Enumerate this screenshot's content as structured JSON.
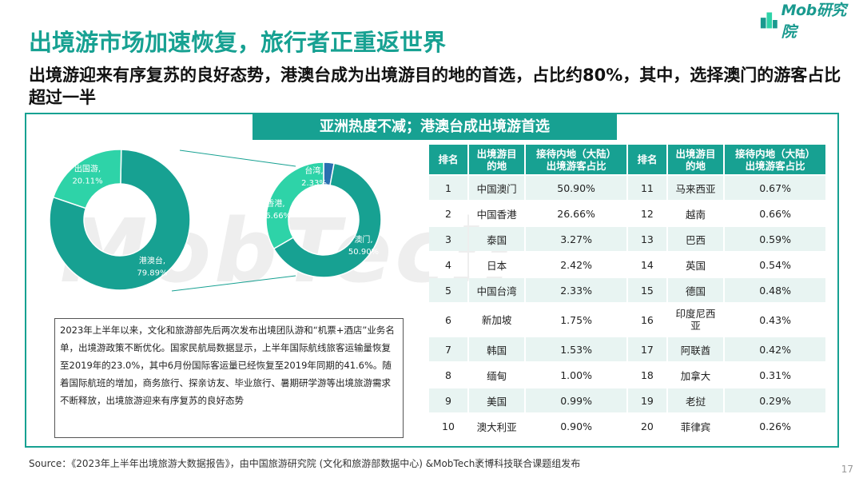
{
  "logo": {
    "text": "Mob研究院"
  },
  "title": "出境游市场加速恢复，旅行者正重返世界",
  "subtitle": "出境游迎来有序复苏的良好态势，港澳台成为出境游目的地的首选，占比约80%，其中，选择澳门的游客占比超过一半",
  "banner": "亚洲热度不减；港澳台成出境游首选",
  "watermark": "MobTech",
  "colors": {
    "teal": "#17a192",
    "mint": "#2ed3a8",
    "blue": "#2a6fb0"
  },
  "chart_data": [
    {
      "type": "pie",
      "categories": [
        "港澳台",
        "出国游"
      ],
      "values": [
        79.89,
        20.11
      ],
      "labels": [
        "港澳台,\n79.89%",
        "出国游,\n20.11%"
      ]
    },
    {
      "type": "pie",
      "categories": [
        "澳门",
        "香港",
        "台湾"
      ],
      "values": [
        50.9,
        26.66,
        2.33
      ],
      "labels": [
        "澳门,\n50.90%",
        "香港,\n26.66%",
        "台湾,\n2.33%"
      ]
    }
  ],
  "note": "2023年上半年以来，文化和旅游部先后两次发布出境团队游和“机票+酒店”业务名单，出境游政策不断优化。国家民航局数据显示，上半年国际航线旅客运输量恢复至2019年的23.0%，其中6月份国际客运量已经恢复至2019年同期的41.6%。随着国际航班的增加，商务旅行、探亲访友、毕业旅行、暑期研学游等出境旅游需求不断释放，出境旅游迎来有序复苏的良好态势",
  "table": {
    "headers": [
      "排名",
      "出境游目\n的地",
      "接待内地（大陆）\n出境游客占比",
      "排名",
      "出境游目\n的地",
      "接待内地（大陆）\n出境游客占比"
    ],
    "rows": [
      [
        "1",
        "中国澳门",
        "50.90%",
        "11",
        "马来西亚",
        "0.67%"
      ],
      [
        "2",
        "中国香港",
        "26.66%",
        "12",
        "越南",
        "0.66%"
      ],
      [
        "3",
        "泰国",
        "3.27%",
        "13",
        "巴西",
        "0.59%"
      ],
      [
        "4",
        "日本",
        "2.42%",
        "14",
        "英国",
        "0.54%"
      ],
      [
        "5",
        "中国台湾",
        "2.33%",
        "15",
        "德国",
        "0.48%"
      ],
      [
        "6",
        "新加坡",
        "1.75%",
        "16",
        "印度尼西\n亚",
        "0.43%"
      ],
      [
        "7",
        "韩国",
        "1.53%",
        "17",
        "阿联酋",
        "0.42%"
      ],
      [
        "8",
        "缅甸",
        "1.00%",
        "18",
        "加拿大",
        "0.31%"
      ],
      [
        "9",
        "美国",
        "0.99%",
        "19",
        "老挝",
        "0.29%"
      ],
      [
        "10",
        "澳大利亚",
        "0.90%",
        "20",
        "菲律宾",
        "0.26%"
      ]
    ]
  },
  "source": "Source：《2023年上半年出境旅游大数据报告》，由中国旅游研究院 (文化和旅游部数据中心) &MobTech袤博科技联合课题组发布",
  "page_number": "17"
}
